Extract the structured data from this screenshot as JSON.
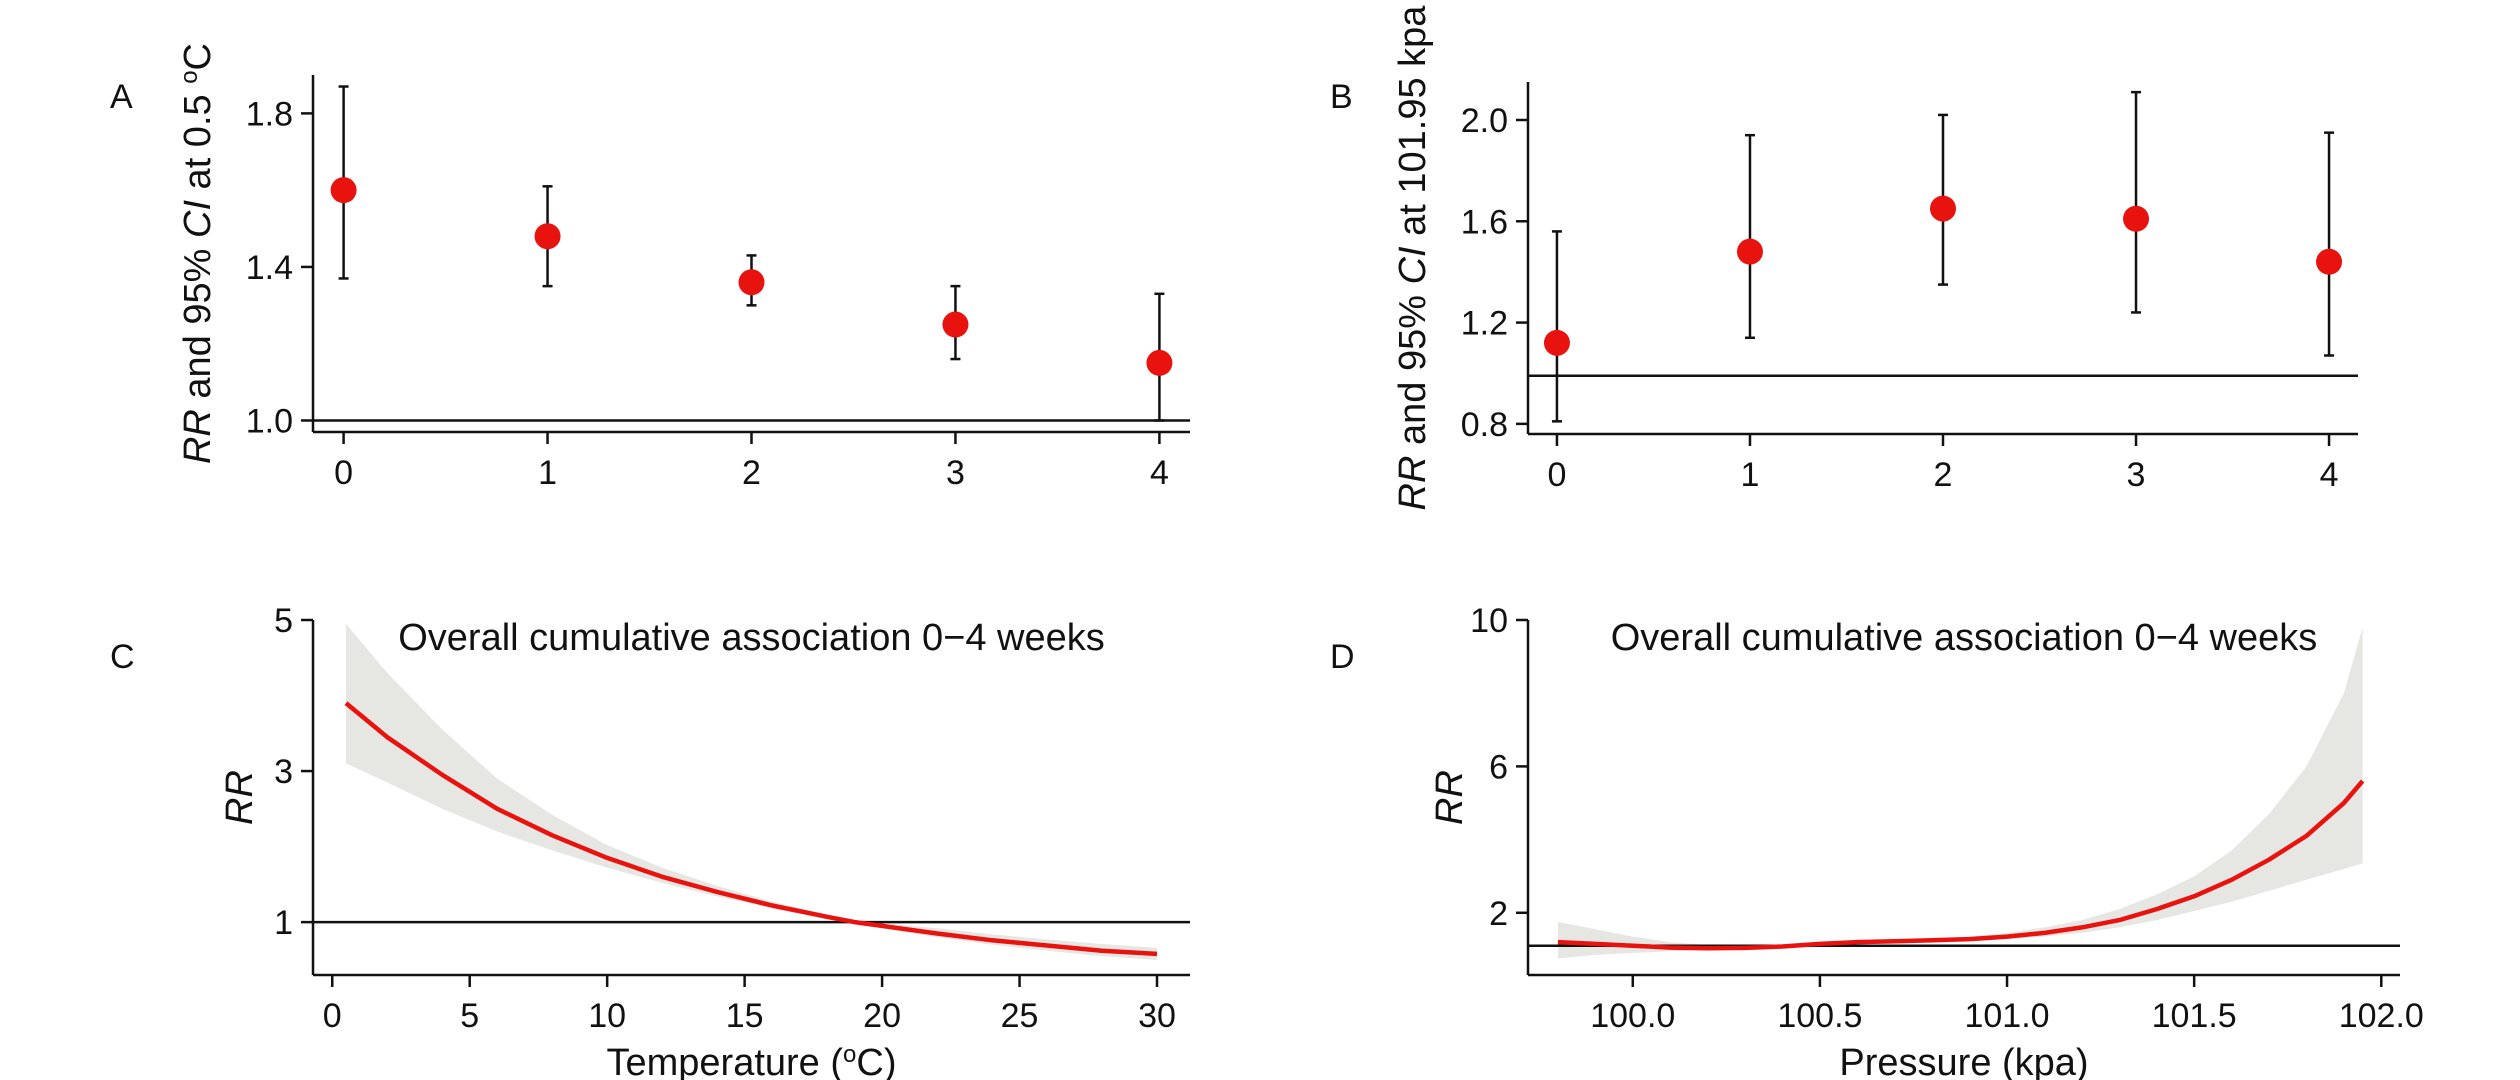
{
  "colors": {
    "point": "#e8130f",
    "line": "#e8130f",
    "band": "#e6e6e3",
    "axis": "#111111"
  },
  "chart_data": [
    {
      "id": "A",
      "panel_label": "A",
      "type": "scatter",
      "title": "",
      "xlabel": "",
      "ylabel_parts": [
        {
          "text": "RR",
          "italic": true
        },
        {
          "text": " and 95% ",
          "italic": false
        },
        {
          "text": "CI",
          "italic": true
        },
        {
          "text": " at 0.5 ",
          "italic": false
        },
        {
          "text": "o",
          "italic": false,
          "sup": true
        },
        {
          "text": "C",
          "italic": false
        }
      ],
      "xlim": [
        -0.15,
        4.15
      ],
      "ylim": [
        0.97,
        1.9
      ],
      "xticks": [
        0,
        1,
        2,
        3,
        4
      ],
      "xtick_labels": [
        "0",
        "1",
        "2",
        "3",
        "4"
      ],
      "yticks": [
        1.0,
        1.4,
        1.8
      ],
      "ytick_labels": [
        "1.0",
        "1.4",
        "1.8"
      ],
      "reference_line": 1.0,
      "points": [
        {
          "x": 0,
          "y": 1.6,
          "lower": 1.37,
          "upper": 1.87
        },
        {
          "x": 1,
          "y": 1.48,
          "lower": 1.35,
          "upper": 1.61
        },
        {
          "x": 2,
          "y": 1.36,
          "lower": 1.3,
          "upper": 1.43
        },
        {
          "x": 3,
          "y": 1.25,
          "lower": 1.16,
          "upper": 1.35
        },
        {
          "x": 4,
          "y": 1.15,
          "lower": 1.0,
          "upper": 1.33
        }
      ]
    },
    {
      "id": "B",
      "panel_label": "B",
      "type": "scatter",
      "title": "",
      "xlabel": "",
      "ylabel_parts": [
        {
          "text": "RR",
          "italic": true
        },
        {
          "text": " and 95% ",
          "italic": false
        },
        {
          "text": "CI",
          "italic": true
        },
        {
          "text": " at 101.95 kpa",
          "italic": false
        }
      ],
      "xlim": [
        -0.15,
        4.15
      ],
      "ylim": [
        0.76,
        2.15
      ],
      "xticks": [
        0,
        1,
        2,
        3,
        4
      ],
      "xtick_labels": [
        "0",
        "1",
        "2",
        "3",
        "4"
      ],
      "yticks": [
        0.8,
        1.2,
        1.6,
        2.0
      ],
      "ytick_labels": [
        "0.8",
        "1.2",
        "1.6",
        "2.0"
      ],
      "reference_line": 0.99,
      "points": [
        {
          "x": 0,
          "y": 1.12,
          "lower": 0.81,
          "upper": 1.56
        },
        {
          "x": 1,
          "y": 1.48,
          "lower": 1.14,
          "upper": 1.94
        },
        {
          "x": 2,
          "y": 1.65,
          "lower": 1.35,
          "upper": 2.02
        },
        {
          "x": 3,
          "y": 1.61,
          "lower": 1.24,
          "upper": 2.11
        },
        {
          "x": 4,
          "y": 1.44,
          "lower": 1.07,
          "upper": 1.95
        }
      ]
    },
    {
      "id": "C",
      "panel_label": "C",
      "type": "line",
      "title": "Overall cumulative association 0−4 weeks",
      "xlabel_parts": [
        {
          "text": "Temperature (",
          "italic": false
        },
        {
          "text": "o",
          "italic": false,
          "sup": true
        },
        {
          "text": "C)",
          "italic": false
        }
      ],
      "ylabel_parts": [
        {
          "text": "RR",
          "italic": true
        }
      ],
      "xlim": [
        -0.7,
        31.2
      ],
      "ylim": [
        0.3,
        5.0
      ],
      "xticks": [
        0,
        5,
        10,
        15,
        20,
        25,
        30
      ],
      "xtick_labels": [
        "0",
        "5",
        "10",
        "15",
        "20",
        "25",
        "30"
      ],
      "yticks": [
        1,
        3,
        5
      ],
      "ytick_labels": [
        "1",
        "3",
        "5"
      ],
      "reference_line": 1.0,
      "x": [
        0.5,
        2,
        4,
        6,
        8,
        10,
        12,
        14,
        16,
        18,
        19,
        20,
        22,
        24,
        26,
        28,
        30
      ],
      "y": [
        3.9,
        3.45,
        2.95,
        2.5,
        2.15,
        1.85,
        1.6,
        1.4,
        1.22,
        1.07,
        1.0,
        0.95,
        0.85,
        0.76,
        0.69,
        0.62,
        0.58
      ],
      "lower": [
        3.1,
        2.85,
        2.5,
        2.2,
        1.95,
        1.72,
        1.52,
        1.34,
        1.18,
        1.05,
        1.0,
        0.92,
        0.8,
        0.7,
        0.62,
        0.55,
        0.5
      ],
      "upper": [
        4.95,
        4.3,
        3.55,
        2.9,
        2.42,
        2.02,
        1.72,
        1.48,
        1.27,
        1.1,
        1.0,
        0.98,
        0.92,
        0.84,
        0.77,
        0.71,
        0.66
      ]
    },
    {
      "id": "D",
      "panel_label": "D",
      "type": "line",
      "title": "Overall cumulative association 0−4 weeks",
      "xlabel_parts": [
        {
          "text": "Pressure (kpa)",
          "italic": false
        }
      ],
      "ylabel_parts": [
        {
          "text": "RR",
          "italic": true
        }
      ],
      "xlim": [
        99.72,
        102.05
      ],
      "ylim": [
        0.3,
        10.0
      ],
      "xticks": [
        100.0,
        100.5,
        101.0,
        101.5,
        102.0
      ],
      "xtick_labels": [
        "100.0",
        "100.5",
        "101.0",
        "101.5",
        "102.0"
      ],
      "yticks": [
        2,
        6,
        10
      ],
      "ytick_labels": [
        "2",
        "6",
        "10"
      ],
      "reference_line": 1.1,
      "x": [
        99.8,
        99.9,
        100.0,
        100.1,
        100.2,
        100.3,
        100.4,
        100.5,
        100.6,
        100.7,
        100.8,
        100.9,
        101.0,
        101.1,
        101.2,
        101.3,
        101.4,
        101.5,
        101.6,
        101.7,
        101.8,
        101.9,
        101.95
      ],
      "y": [
        1.2,
        1.15,
        1.1,
        1.05,
        1.03,
        1.04,
        1.08,
        1.15,
        1.2,
        1.22,
        1.25,
        1.28,
        1.35,
        1.45,
        1.6,
        1.8,
        2.1,
        2.45,
        2.9,
        3.45,
        4.1,
        5.0,
        5.6
      ],
      "lower": [
        0.75,
        0.85,
        0.9,
        0.95,
        0.98,
        1.0,
        1.04,
        1.1,
        1.16,
        1.18,
        1.2,
        1.23,
        1.28,
        1.35,
        1.45,
        1.6,
        1.8,
        2.05,
        2.3,
        2.6,
        2.9,
        3.2,
        3.35
      ],
      "upper": [
        1.75,
        1.55,
        1.35,
        1.2,
        1.12,
        1.1,
        1.12,
        1.2,
        1.25,
        1.27,
        1.3,
        1.35,
        1.45,
        1.6,
        1.8,
        2.1,
        2.5,
        3.0,
        3.7,
        4.7,
        6.0,
        8.0,
        9.8
      ]
    }
  ]
}
